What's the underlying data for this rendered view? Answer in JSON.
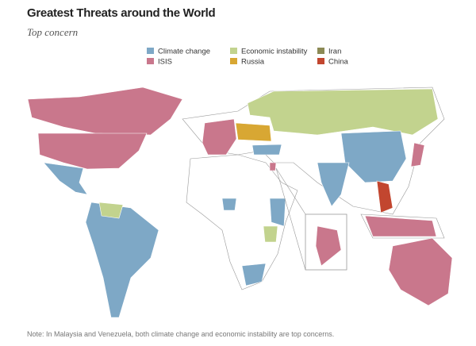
{
  "title": "Greatest Threats around the World",
  "subtitle": "Top concern",
  "legend": [
    {
      "label": "Climate change",
      "color": "#7ea8c6"
    },
    {
      "label": "Economic instability",
      "color": "#c2d38e"
    },
    {
      "label": "Iran",
      "color": "#8c8a55"
    },
    {
      "label": "ISIS",
      "color": "#c9778c"
    },
    {
      "label": "Russia",
      "color": "#d8a733"
    },
    {
      "label": "China",
      "color": "#c2462f"
    }
  ],
  "note": "Note: In Malaysia and Venezuela, both climate change and economic instability are top concerns."
}
